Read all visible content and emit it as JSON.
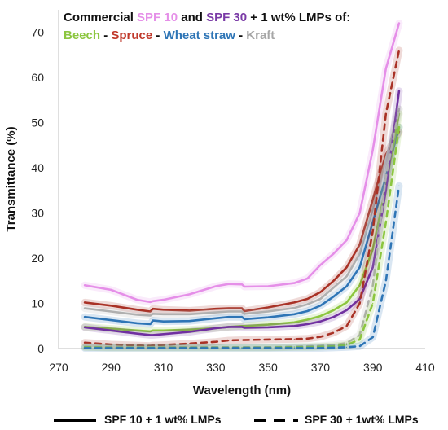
{
  "chart_data": {
    "type": "line",
    "xlabel": "Wavelength (nm)",
    "ylabel": "Transmittance (%)",
    "xlim": [
      270,
      410
    ],
    "ylim": [
      0,
      75
    ],
    "xticks": [
      270,
      290,
      310,
      330,
      350,
      370,
      390,
      410
    ],
    "yticks": [
      0,
      10,
      20,
      30,
      40,
      50,
      60,
      70
    ],
    "grid": false,
    "legend": {
      "position": "top-left",
      "line1": [
        {
          "text": "Commercial ",
          "color": "#111111"
        },
        {
          "text": "SPF 10",
          "color": "#e58fe8"
        },
        {
          "text": " and ",
          "color": "#111111"
        },
        {
          "text": "SPF 30",
          "color": "#7a3aa6"
        },
        {
          "text": " + 1 wt% LMPs of:",
          "color": "#111111"
        }
      ],
      "line2": [
        {
          "text": "Beech",
          "color": "#8cc63f"
        },
        {
          "text": " - ",
          "color": "#111111"
        },
        {
          "text": "Spruce",
          "color": "#c0392b"
        },
        {
          "text": " - ",
          "color": "#111111"
        },
        {
          "text": "Wheat straw",
          "color": "#2e75b6"
        },
        {
          "text": " - ",
          "color": "#111111"
        },
        {
          "text": "Kraft",
          "color": "#a6a6a6"
        }
      ]
    },
    "bottom_legend": {
      "solid_label": "SPF 10 + 1 wt% LMPs",
      "dashed_label": "SPF 30 + 1wt% LMPs"
    },
    "x": [
      280,
      290,
      300,
      305,
      306,
      310,
      320,
      330,
      335,
      340,
      341,
      350,
      360,
      365,
      370,
      375,
      380,
      385,
      390,
      395,
      400
    ],
    "series": [
      {
        "name": "SPF 10",
        "style": "solid",
        "color": "#e58fe8",
        "values": [
          14,
          13,
          10.8,
          10.3,
          10.5,
          10.8,
          12,
          13.8,
          14.3,
          14.2,
          13.7,
          13.8,
          14.5,
          15.5,
          18.5,
          21,
          24,
          30,
          44,
          62,
          72
        ]
      },
      {
        "name": "Spruce",
        "style": "solid",
        "color": "#a93226",
        "values": [
          10.2,
          9.5,
          8.6,
          8.2,
          8.8,
          8.6,
          8.4,
          8.8,
          8.9,
          8.9,
          8.3,
          9.1,
          10.2,
          11,
          12.5,
          15,
          18,
          23,
          33,
          43,
          48
        ]
      },
      {
        "name": "Kraft",
        "style": "solid",
        "color": "#b0b0b0",
        "values": [
          8.9,
          8.2,
          7.5,
          7.3,
          7.7,
          7.6,
          7.6,
          8.0,
          8.2,
          8.2,
          7.7,
          8.2,
          9.0,
          9.8,
          11,
          13.5,
          16,
          21,
          31,
          42,
          53
        ]
      },
      {
        "name": "Wheat straw",
        "style": "solid",
        "color": "#2e75b6",
        "values": [
          7.0,
          6.3,
          5.6,
          5.4,
          6.2,
          6.0,
          6.1,
          6.7,
          7.0,
          7.0,
          6.5,
          6.9,
          7.6,
          8.3,
          9.5,
          11.5,
          13.8,
          18,
          28,
          38,
          49
        ]
      },
      {
        "name": "Beech",
        "style": "solid",
        "color": "#8cc63f",
        "values": [
          4.8,
          4.4,
          4.0,
          3.8,
          4.0,
          4.0,
          4.2,
          4.5,
          4.8,
          5.0,
          5.0,
          5.3,
          5.8,
          6.4,
          7.2,
          8.5,
          10.2,
          14,
          22,
          36,
          52
        ]
      },
      {
        "name": "SPF 30",
        "style": "solid",
        "color": "#7030a0",
        "values": [
          4.7,
          4.0,
          3.3,
          3.0,
          3.0,
          3.2,
          3.7,
          4.5,
          4.8,
          4.8,
          4.6,
          4.7,
          5.0,
          5.4,
          6.0,
          7.0,
          8.5,
          11,
          18,
          35,
          57
        ]
      },
      {
        "name": "Spruce",
        "style": "dashed",
        "color": "#a93226",
        "values": [
          1.3,
          0.9,
          0.7,
          0.6,
          0.7,
          0.8,
          1.1,
          1.5,
          1.8,
          1.9,
          1.9,
          2.0,
          2.1,
          2.2,
          2.6,
          3.5,
          5.0,
          10,
          26,
          52,
          66
        ]
      },
      {
        "name": "Kraft",
        "style": "dashed",
        "color": "#b0b0b0",
        "values": [
          0.4,
          0.3,
          0.3,
          0.3,
          0.3,
          0.3,
          0.3,
          0.3,
          0.3,
          0.3,
          0.3,
          0.3,
          0.4,
          0.5,
          0.6,
          0.8,
          1.2,
          3,
          14,
          38,
          53
        ]
      },
      {
        "name": "Beech",
        "style": "dashed",
        "color": "#8cc63f",
        "values": [
          0.3,
          0.2,
          0.2,
          0.2,
          0.2,
          0.2,
          0.2,
          0.2,
          0.2,
          0.2,
          0.2,
          0.2,
          0.3,
          0.3,
          0.4,
          0.5,
          0.8,
          2,
          10,
          28,
          49
        ]
      },
      {
        "name": "Wheat straw",
        "style": "dashed",
        "color": "#2e75b6",
        "values": [
          0.1,
          0.1,
          0.1,
          0.1,
          0.1,
          0.1,
          0.1,
          0.1,
          0.1,
          0.1,
          0.1,
          0.1,
          0.1,
          0.1,
          0.1,
          0.2,
          0.3,
          0.5,
          2.5,
          15,
          36
        ]
      }
    ]
  }
}
